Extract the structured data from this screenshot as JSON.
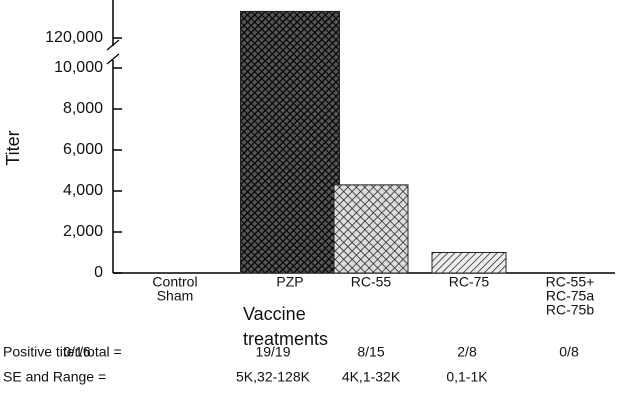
{
  "chart_data": {
    "type": "bar",
    "y_label": "Titer",
    "x_label": [
      "Vaccine",
      "treatments"
    ],
    "categories": [
      [
        "Control",
        "Sham"
      ],
      [
        "PZP"
      ],
      [
        "RC-55"
      ],
      [
        "RC-75"
      ],
      [
        "RC-55+",
        "RC-75a",
        "RC-75b"
      ]
    ],
    "values": [
      0,
      134000,
      4300,
      1000,
      0
    ],
    "color": "#222222",
    "ylim": [
      0,
      140000
    ],
    "axis_break": [
      10000,
      120000
    ],
    "yticks": [
      0,
      {
        "value": 2000,
        "label": "2,000"
      },
      {
        "value": 4000,
        "label": "4,000"
      },
      {
        "value": 6000,
        "label": "6,000"
      },
      {
        "value": 8000,
        "label": "8,000"
      },
      {
        "value": 10000,
        "label": "10,000"
      },
      {
        "value": 120000,
        "label": "120,000"
      }
    ],
    "rows": [
      {
        "label": "Positive titer/total =",
        "cells": [
          "0/16",
          "19/19",
          "8/15",
          "2/8",
          "0/8"
        ]
      },
      {
        "label": "SE and Range =",
        "cells": [
          null,
          "5K,32-128K",
          "4K,1-32K",
          "0,1-1K",
          null
        ]
      }
    ]
  }
}
